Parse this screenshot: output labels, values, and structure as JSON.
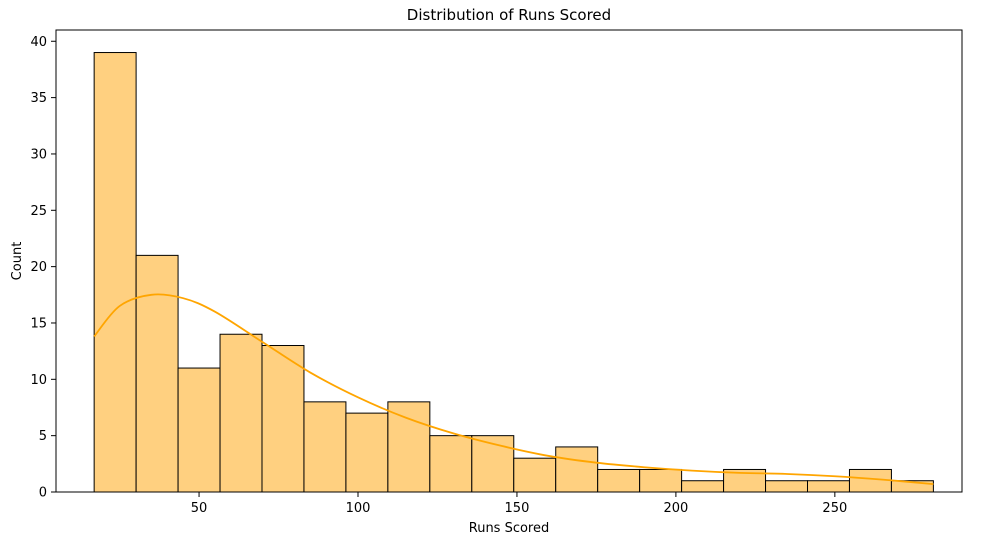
{
  "chart_data": {
    "type": "bar",
    "subtype": "histogram",
    "title": "Distribution of Runs Scored",
    "xlabel": "Runs Scored",
    "ylabel": "Count",
    "xlim": [
      5,
      290
    ],
    "ylim": [
      0,
      41
    ],
    "bin_start": 17,
    "bin_width": 13.2,
    "counts": [
      39,
      21,
      11,
      14,
      13,
      8,
      7,
      8,
      5,
      5,
      3,
      4,
      2,
      2,
      1,
      2,
      1,
      1,
      2,
      1
    ],
    "x_ticks": [
      50,
      100,
      150,
      200,
      250
    ],
    "y_ticks": [
      0,
      5,
      10,
      15,
      20,
      25,
      30,
      35,
      40
    ],
    "kde": {
      "x": [
        17,
        25,
        35,
        45,
        55,
        70,
        85,
        100,
        115,
        130,
        145,
        160,
        175,
        190,
        205,
        220,
        235,
        250,
        265,
        281
      ],
      "y": [
        13.8,
        16.5,
        17.5,
        17.2,
        16.0,
        13.3,
        10.6,
        8.4,
        6.6,
        5.2,
        4.1,
        3.2,
        2.6,
        2.2,
        1.9,
        1.7,
        1.6,
        1.4,
        1.1,
        0.7
      ]
    },
    "grid": false,
    "colors": {
      "bar_fill": "#ffd080",
      "bar_edge": "#000000",
      "kde_line": "#ffa500"
    }
  }
}
